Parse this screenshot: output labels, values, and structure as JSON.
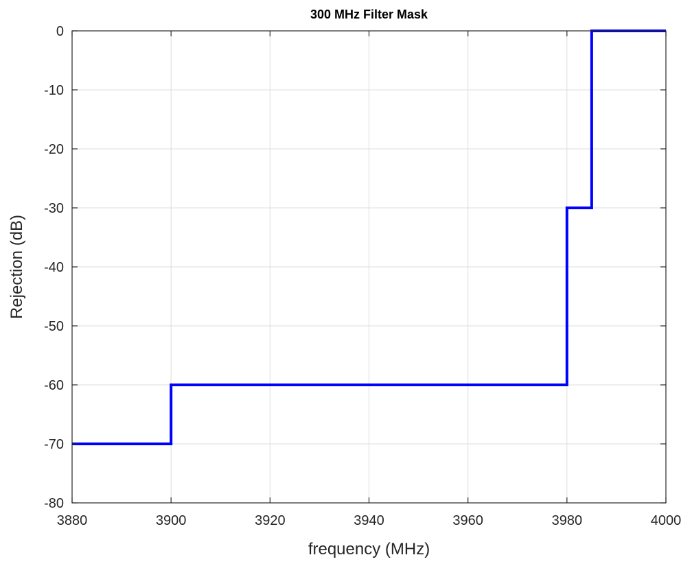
{
  "chart_data": {
    "type": "line",
    "title": "300 MHz Filter Mask",
    "xlabel": "frequency (MHz)",
    "ylabel": "Rejection (dB)",
    "xlim": [
      3880,
      4000
    ],
    "ylim": [
      -80,
      0
    ],
    "xticks": [
      3880,
      3900,
      3920,
      3940,
      3960,
      3980,
      4000
    ],
    "yticks": [
      0,
      -10,
      -20,
      -30,
      -40,
      -50,
      -60,
      -70,
      -80
    ],
    "xtick_labels": [
      "3880",
      "3900",
      "3920",
      "3940",
      "3960",
      "3980",
      "4000"
    ],
    "ytick_labels": [
      "0",
      "-10",
      "-20",
      "-30",
      "-40",
      "-50",
      "-60",
      "-70",
      "-80"
    ],
    "grid": true,
    "series": [
      {
        "color": "#0000ff",
        "x": [
          3880,
          3900,
          3900,
          3980,
          3980,
          3985,
          3985,
          4000
        ],
        "y": [
          -70,
          -70,
          -60,
          -60,
          -30,
          -30,
          0,
          0
        ]
      }
    ]
  }
}
